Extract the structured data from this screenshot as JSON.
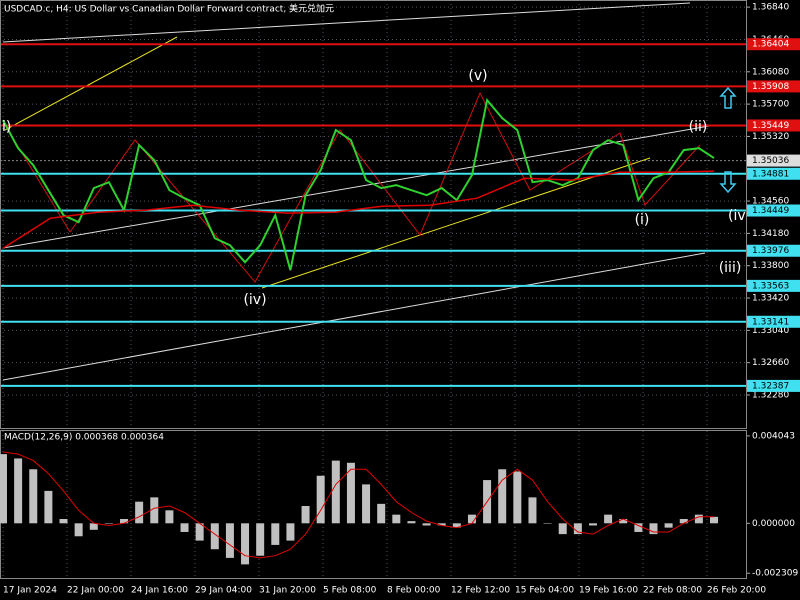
{
  "chart_data": {
    "type": "price",
    "title": "USDCAD.c, H4:  US Dollar vs Canadian Dollar Forward contract, 美元兑加元",
    "x_labels": [
      "17 Jan 2024",
      "22 Jan 00:00",
      "24 Jan 16:00",
      "29 Jan 04:00",
      "31 Jan 20:00",
      "5 Feb 08:00",
      "8 Feb 00:00",
      "12 Feb 12:00",
      "15 Feb 04:00",
      "19 Feb 16:00",
      "22 Feb 08:00",
      "26 Feb 20:00"
    ],
    "ylim": [
      1.31892,
      1.36924
    ],
    "yticks": [
      {
        "value": 1.3228,
        "label": "1.32280"
      },
      {
        "value": 1.3266,
        "label": "1.32660"
      },
      {
        "value": 1.3304,
        "label": "1.33040"
      },
      {
        "value": 1.3342,
        "label": "1.33420"
      },
      {
        "value": 1.338,
        "label": "1.33800"
      },
      {
        "value": 1.3418,
        "label": "1.34180"
      },
      {
        "value": 1.3456,
        "label": "1.34560"
      },
      {
        "value": 1.3532,
        "label": "1.35320"
      },
      {
        "value": 1.357,
        "label": "1.35700"
      },
      {
        "value": 1.3608,
        "label": "1.36080"
      },
      {
        "value": 1.3646,
        "label": "1.36460"
      },
      {
        "value": 1.3684,
        "label": "1.36840"
      }
    ],
    "grid": true,
    "series": [
      {
        "color": "#2fd12f",
        "values": [
          1.35512,
          1.35182,
          1.34982,
          1.34688,
          1.34394,
          1.34312,
          1.34712,
          1.34782,
          1.34453,
          1.35218,
          1.35041,
          1.34688,
          1.34594,
          1.34512,
          1.34124,
          1.34041,
          1.33841,
          1.34041,
          1.34394,
          1.33747,
          1.34629,
          1.34924,
          1.35394,
          1.35276,
          1.34806,
          1.34712,
          1.34747,
          1.34688,
          1.34629,
          1.34712,
          1.34571,
          1.34865,
          1.35747,
          1.35535,
          1.35394,
          1.34782,
          1.34806,
          1.34747,
          1.34829,
          1.35159,
          1.35276,
          1.35218,
          1.34571,
          1.34829,
          1.349,
          1.35159,
          1.35182,
          1.35065
        ]
      },
      {
        "color": "#e00000",
        "values": [
          1.34006,
          1.34359,
          1.34429,
          1.34453,
          1.34512,
          1.34453,
          1.34418,
          1.34429,
          1.345,
          1.34512,
          1.34594,
          1.34829,
          1.34806,
          1.349,
          1.349,
          1.34912
        ]
      }
    ],
    "levels": [
      {
        "value": 1.36404,
        "color": "#e01010"
      },
      {
        "value": 1.35908,
        "color": "#e01010"
      },
      {
        "value": 1.35449,
        "color": "#e01010"
      },
      {
        "value": 1.34881,
        "color": "#40e0f0"
      },
      {
        "value": 1.34449,
        "color": "#40e0f0"
      },
      {
        "value": 1.33976,
        "color": "#40e0f0"
      },
      {
        "value": 1.33563,
        "color": "#40e0f0"
      },
      {
        "value": 1.33141,
        "color": "#40e0f0"
      },
      {
        "value": 1.32387,
        "color": "#40e0f0"
      }
    ],
    "current_price": 1.35036,
    "waves": [
      "(v)",
      "(ii)",
      "(iv)",
      "(i)",
      "(iii)",
      "i)",
      "(iv)"
    ],
    "macd": {
      "title": "MACD(12,26,9) 0.000368 0.000364",
      "ylim": [
        -0.00253,
        0.00427
      ],
      "yticks": [
        {
          "value": -0.002309,
          "label": "-0.002309"
        },
        {
          "value": 0,
          "label": "0.000000"
        },
        0.004043
      ],
      "histogram": [
        0.0032,
        0.003,
        0.0025,
        0.0015,
        0.0002,
        -0.0006,
        -0.0003,
        0,
        0.0002,
        0.001,
        0.0012,
        0.0006,
        -0.0004,
        -0.0008,
        -0.0012,
        -0.0016,
        -0.0019,
        -0.0015,
        -0.001,
        -0.0008,
        0.0008,
        0.0022,
        0.0029,
        0.0028,
        0.0018,
        0.0009,
        0.0004,
        0.0001,
        -0.0001,
        -0.0001,
        -0.0002,
        0.0004,
        0.002,
        0.0025,
        0.0024,
        0.0012,
        0,
        -0.0005,
        -0.0005,
        -0.0001,
        0.0004,
        0.0002,
        -0.0004,
        -0.0005,
        -0.0002,
        0.0002,
        0.0004,
        0.0003
      ],
      "histogram_color": "#c0c0c0",
      "signal": [
        0.0033,
        0.0032,
        0.0029,
        0.0023,
        0.0015,
        0.0006,
        0,
        -0.0001,
        0,
        0.0003,
        0.0007,
        0.0008,
        0.0005,
        0,
        -0.0005,
        -0.001,
        -0.0015,
        -0.0016,
        -0.0015,
        -0.0012,
        -0.0005,
        0.0006,
        0.0018,
        0.0025,
        0.0025,
        0.0018,
        0.001,
        0.0005,
        0.0001,
        -0.0001,
        -0.0002,
        0,
        0.001,
        0.002,
        0.0025,
        0.002,
        0.001,
        0.0002,
        -0.0004,
        -0.0005,
        -0.0001,
        0.0002,
        -0.0001,
        -0.0004,
        -0.0004,
        0,
        0.0003,
        0.0003
      ],
      "signal_color": "#e00000"
    }
  }
}
